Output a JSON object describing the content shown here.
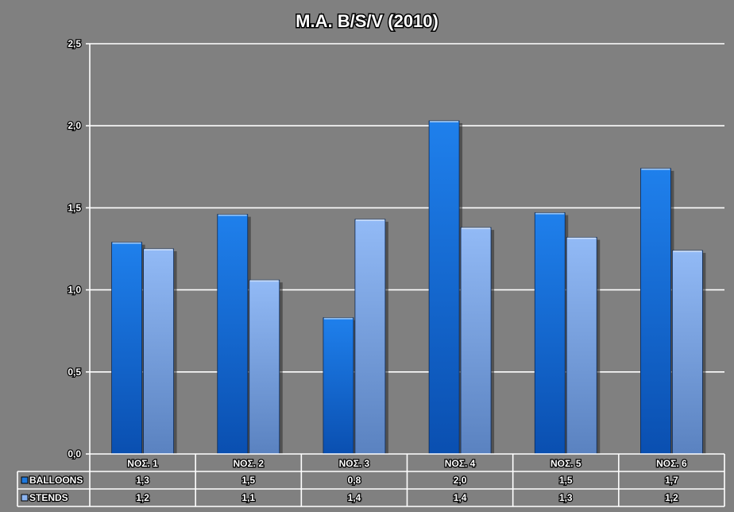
{
  "chart_data": {
    "type": "bar",
    "title": "M.A. B/S/V (2010)",
    "categories": [
      "ΝΟΣ. 1",
      "ΝΟΣ. 2",
      "ΝΟΣ. 3",
      "ΝΟΣ. 4",
      "ΝΟΣ. 5",
      "ΝΟΣ. 6"
    ],
    "series": [
      {
        "name": "BALLOONS",
        "values": [
          1.29,
          1.46,
          0.83,
          2.03,
          1.47,
          1.74
        ],
        "labels": [
          "1,3",
          "1,5",
          "0,8",
          "2,0",
          "1,5",
          "1,7"
        ],
        "color": "#1e78dc"
      },
      {
        "name": "STENDS",
        "values": [
          1.25,
          1.06,
          1.43,
          1.38,
          1.32,
          1.24
        ],
        "labels": [
          "1,2",
          "1,1",
          "1,4",
          "1,4",
          "1,3",
          "1,2"
        ],
        "color": "#8cb4f0"
      }
    ],
    "ylim": [
      0,
      2.5
    ],
    "yticks": [
      0,
      0.5,
      1,
      1.5,
      2,
      2.5
    ],
    "ytick_labels": [
      "0,0",
      "0,5",
      "1,0",
      "1,5",
      "2,0",
      "2,5"
    ],
    "grid": true,
    "legend": "data-table",
    "colors": {
      "background": "#808080",
      "gridline": "#ffffff",
      "text": "#ffffff"
    }
  }
}
